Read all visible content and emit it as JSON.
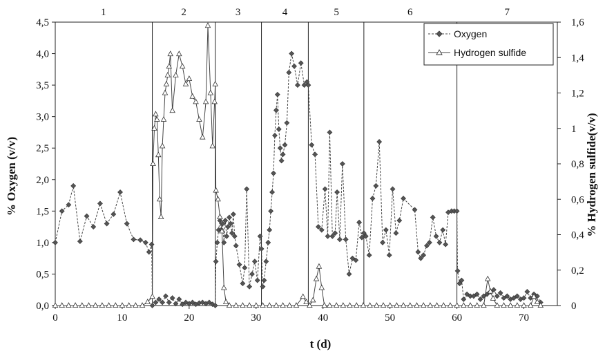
{
  "chart_data": {
    "type": "line",
    "xlabel": "t (d)",
    "ylabel_left": "% Oxygen (v/v)",
    "ylabel_right": "% Hydrogen sulfide(v/v)",
    "xlim": [
      0,
      75
    ],
    "ylim_left": [
      0,
      4.5
    ],
    "ylim_right": [
      0,
      1.6
    ],
    "x_ticks": [
      "0",
      "10",
      "20",
      "30",
      "40",
      "50",
      "60",
      "70"
    ],
    "y_left_ticks": [
      "0,0",
      "0,5",
      "1,0",
      "1,5",
      "2,0",
      "2,5",
      "3,0",
      "3,5",
      "4,0",
      "4,5"
    ],
    "y_right_ticks": [
      "0",
      "0,2",
      "0,4",
      "0,6",
      "0,8",
      "1",
      "1,2",
      "1,4",
      "1,6"
    ],
    "grid": false,
    "legend_position": "top-right",
    "phase_boundaries": [
      14.5,
      23.9,
      30.8,
      37.8,
      46.1,
      60.0
    ],
    "phases": [
      {
        "label": "1",
        "x": 7.2
      },
      {
        "label": "2",
        "x": 19.2
      },
      {
        "label": "3",
        "x": 27.3
      },
      {
        "label": "4",
        "x": 34.3
      },
      {
        "label": "5",
        "x": 42.0
      },
      {
        "label": "6",
        "x": 53.0
      },
      {
        "label": "7",
        "x": 67.5
      }
    ],
    "series": [
      {
        "name": "Oxygen",
        "axis": "left",
        "marker": "diamond",
        "line": "dashed",
        "points": [
          [
            0,
            1.0
          ],
          [
            1,
            1.5
          ],
          [
            2,
            1.6
          ],
          [
            2.7,
            1.9
          ],
          [
            3.7,
            1.02
          ],
          [
            4.7,
            1.42
          ],
          [
            5.7,
            1.25
          ],
          [
            6.7,
            1.62
          ],
          [
            7.7,
            1.3
          ],
          [
            8.7,
            1.45
          ],
          [
            9.7,
            1.8
          ],
          [
            10.7,
            1.3
          ],
          [
            11.7,
            1.05
          ],
          [
            12.7,
            1.04
          ],
          [
            13.5,
            1.0
          ],
          [
            14.0,
            0.85
          ],
          [
            14.4,
            0.97
          ],
          [
            14.5,
            0.0
          ],
          [
            15,
            0.05
          ],
          [
            15.5,
            0.1
          ],
          [
            16,
            0.05
          ],
          [
            16.5,
            0.15
          ],
          [
            17,
            0.05
          ],
          [
            17.5,
            0.12
          ],
          [
            18,
            0.03
          ],
          [
            18.5,
            0.1
          ],
          [
            19,
            0.02
          ],
          [
            19.5,
            0.05
          ],
          [
            20,
            0.03
          ],
          [
            20.5,
            0.05
          ],
          [
            21,
            0.02
          ],
          [
            21.5,
            0.04
          ],
          [
            22,
            0.05
          ],
          [
            22.5,
            0.03
          ],
          [
            23,
            0.05
          ],
          [
            23.5,
            0.02
          ],
          [
            23.9,
            0.0
          ],
          [
            24.0,
            0.7
          ],
          [
            24.2,
            1.0
          ],
          [
            24.4,
            1.2
          ],
          [
            24.6,
            1.35
          ],
          [
            24.8,
            1.2
          ],
          [
            25.0,
            1.3
          ],
          [
            25.2,
            1.0
          ],
          [
            25.4,
            1.35
          ],
          [
            25.6,
            1.1
          ],
          [
            25.8,
            1.25
          ],
          [
            26.0,
            1.4
          ],
          [
            26.2,
            1.3
          ],
          [
            26.4,
            1.15
          ],
          [
            26.6,
            1.45
          ],
          [
            26.8,
            1.1
          ],
          [
            27.0,
            0.95
          ],
          [
            27.5,
            0.65
          ],
          [
            28.0,
            0.35
          ],
          [
            28.3,
            0.6
          ],
          [
            28.6,
            1.85
          ],
          [
            29.0,
            0.3
          ],
          [
            29.4,
            0.5
          ],
          [
            29.8,
            0.7
          ],
          [
            30.2,
            0.4
          ],
          [
            30.6,
            1.1
          ],
          [
            30.8,
            0.9
          ],
          [
            31.0,
            0.3
          ],
          [
            31.2,
            0.4
          ],
          [
            31.5,
            0.7
          ],
          [
            31.8,
            1.0
          ],
          [
            32.0,
            1.2
          ],
          [
            32.2,
            1.5
          ],
          [
            32.4,
            1.8
          ],
          [
            32.6,
            2.1
          ],
          [
            32.8,
            2.7
          ],
          [
            33.0,
            3.1
          ],
          [
            33.2,
            3.35
          ],
          [
            33.4,
            2.8
          ],
          [
            33.6,
            2.5
          ],
          [
            33.8,
            2.3
          ],
          [
            34.0,
            2.4
          ],
          [
            34.3,
            2.55
          ],
          [
            34.6,
            2.9
          ],
          [
            34.9,
            3.7
          ],
          [
            35.3,
            4.0
          ],
          [
            35.7,
            3.8
          ],
          [
            36.2,
            3.5
          ],
          [
            36.7,
            3.85
          ],
          [
            37.2,
            3.5
          ],
          [
            37.6,
            3.55
          ],
          [
            37.8,
            3.5
          ],
          [
            38.3,
            2.55
          ],
          [
            38.8,
            2.4
          ],
          [
            39.3,
            1.25
          ],
          [
            39.8,
            1.2
          ],
          [
            40.3,
            1.85
          ],
          [
            40.7,
            1.1
          ],
          [
            41.0,
            2.75
          ],
          [
            41.4,
            1.1
          ],
          [
            41.8,
            1.15
          ],
          [
            42.1,
            1.8
          ],
          [
            42.5,
            1.05
          ],
          [
            42.9,
            2.25
          ],
          [
            43.4,
            1.05
          ],
          [
            43.9,
            0.5
          ],
          [
            44.4,
            0.75
          ],
          [
            44.9,
            0.72
          ],
          [
            45.4,
            1.32
          ],
          [
            45.8,
            1.08
          ],
          [
            46.1,
            1.15
          ],
          [
            46.4,
            1.1
          ],
          [
            46.9,
            0.8
          ],
          [
            47.4,
            1.7
          ],
          [
            47.9,
            1.9
          ],
          [
            48.4,
            2.6
          ],
          [
            48.9,
            1.0
          ],
          [
            49.4,
            1.2
          ],
          [
            49.9,
            0.8
          ],
          [
            50.4,
            1.85
          ],
          [
            50.9,
            1.15
          ],
          [
            51.4,
            1.35
          ],
          [
            52.0,
            1.7
          ],
          [
            53.7,
            1.52
          ],
          [
            54.2,
            0.85
          ],
          [
            54.6,
            0.75
          ],
          [
            55.0,
            0.8
          ],
          [
            55.5,
            0.95
          ],
          [
            55.9,
            1.0
          ],
          [
            56.4,
            1.4
          ],
          [
            56.9,
            1.1
          ],
          [
            57.4,
            1.0
          ],
          [
            57.9,
            1.2
          ],
          [
            58.3,
            0.97
          ],
          [
            58.7,
            1.48
          ],
          [
            59.2,
            1.5
          ],
          [
            59.6,
            1.5
          ],
          [
            60.0,
            1.5
          ],
          [
            60.1,
            0.55
          ],
          [
            60.4,
            0.35
          ],
          [
            60.7,
            0.4
          ],
          [
            61.0,
            0.1
          ],
          [
            61.5,
            0.18
          ],
          [
            62.0,
            0.15
          ],
          [
            62.5,
            0.15
          ],
          [
            63.0,
            0.18
          ],
          [
            63.5,
            0.1
          ],
          [
            64.0,
            0.15
          ],
          [
            64.5,
            0.18
          ],
          [
            65.0,
            0.22
          ],
          [
            65.5,
            0.25
          ],
          [
            66.0,
            0.15
          ],
          [
            66.5,
            0.2
          ],
          [
            67.0,
            0.12
          ],
          [
            67.5,
            0.15
          ],
          [
            68.0,
            0.1
          ],
          [
            68.5,
            0.12
          ],
          [
            69.0,
            0.15
          ],
          [
            69.5,
            0.1
          ],
          [
            70.0,
            0.12
          ],
          [
            70.5,
            0.22
          ],
          [
            71.0,
            0.12
          ],
          [
            71.5,
            0.18
          ],
          [
            72.0,
            0.15
          ],
          [
            72.5,
            0.05
          ]
        ]
      },
      {
        "name": "Hydrogen sulfide",
        "axis": "right",
        "marker": "triangle",
        "line": "solid",
        "points": [
          [
            0,
            0
          ],
          [
            1,
            0
          ],
          [
            2,
            0
          ],
          [
            3,
            0
          ],
          [
            4,
            0
          ],
          [
            5,
            0
          ],
          [
            6,
            0
          ],
          [
            7,
            0
          ],
          [
            8,
            0
          ],
          [
            9,
            0
          ],
          [
            10,
            0
          ],
          [
            11,
            0
          ],
          [
            12,
            0
          ],
          [
            13,
            0
          ],
          [
            13.8,
            0.02
          ],
          [
            14.5,
            0.05
          ],
          [
            14.6,
            0.8
          ],
          [
            14.8,
            1.0
          ],
          [
            15.0,
            1.08
          ],
          [
            15.2,
            1.05
          ],
          [
            15.4,
            0.85
          ],
          [
            15.6,
            0.6
          ],
          [
            15.8,
            0.5
          ],
          [
            16.0,
            0.9
          ],
          [
            16.2,
            1.05
          ],
          [
            16.4,
            1.2
          ],
          [
            16.6,
            1.25
          ],
          [
            16.8,
            1.3
          ],
          [
            17.0,
            1.35
          ],
          [
            17.2,
            1.42
          ],
          [
            17.5,
            1.1
          ],
          [
            18.0,
            1.3
          ],
          [
            18.5,
            1.42
          ],
          [
            19.0,
            1.35
          ],
          [
            19.5,
            1.25
          ],
          [
            20.0,
            1.28
          ],
          [
            20.5,
            1.18
          ],
          [
            21.0,
            1.15
          ],
          [
            21.5,
            1.05
          ],
          [
            22.0,
            0.95
          ],
          [
            22.5,
            1.15
          ],
          [
            22.8,
            1.58
          ],
          [
            23.2,
            1.2
          ],
          [
            23.5,
            0.9
          ],
          [
            23.8,
            1.15
          ],
          [
            23.9,
            1.25
          ],
          [
            24.0,
            0.65
          ],
          [
            24.3,
            0.6
          ],
          [
            24.6,
            0.5
          ],
          [
            24.9,
            0.42
          ],
          [
            25.2,
            0.1
          ],
          [
            25.5,
            0.02
          ],
          [
            26,
            0
          ],
          [
            27,
            0
          ],
          [
            28,
            0
          ],
          [
            29,
            0
          ],
          [
            30,
            0
          ],
          [
            31,
            0
          ],
          [
            32,
            0
          ],
          [
            33,
            0
          ],
          [
            34,
            0
          ],
          [
            35,
            0
          ],
          [
            36,
            0
          ],
          [
            37,
            0.05
          ],
          [
            37.5,
            0.02
          ],
          [
            38,
            0
          ],
          [
            38.5,
            0.03
          ],
          [
            39.0,
            0.15
          ],
          [
            39.4,
            0.22
          ],
          [
            39.8,
            0.1
          ],
          [
            40.2,
            0
          ],
          [
            41,
            0
          ],
          [
            42,
            0
          ],
          [
            43,
            0
          ],
          [
            44,
            0
          ],
          [
            45,
            0
          ],
          [
            46,
            0
          ],
          [
            47,
            0
          ],
          [
            48,
            0
          ],
          [
            49,
            0
          ],
          [
            50,
            0
          ],
          [
            51,
            0
          ],
          [
            52,
            0
          ],
          [
            53,
            0
          ],
          [
            54,
            0
          ],
          [
            55,
            0
          ],
          [
            56,
            0
          ],
          [
            57,
            0
          ],
          [
            58,
            0
          ],
          [
            59,
            0
          ],
          [
            60,
            0
          ],
          [
            61,
            0
          ],
          [
            62,
            0
          ],
          [
            63,
            0
          ],
          [
            64,
            0
          ],
          [
            64.6,
            0.15
          ],
          [
            65,
            0.08
          ],
          [
            65.4,
            0.04
          ],
          [
            66,
            0
          ],
          [
            67,
            0
          ],
          [
            68,
            0
          ],
          [
            69,
            0
          ],
          [
            70,
            0
          ],
          [
            71,
            0
          ],
          [
            71.5,
            0.05
          ],
          [
            72,
            0.02
          ],
          [
            72.5,
            0
          ]
        ]
      }
    ]
  }
}
